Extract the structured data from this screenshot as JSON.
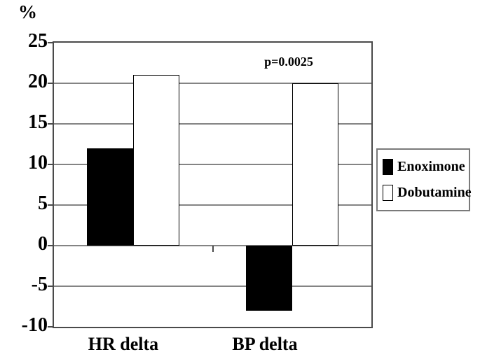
{
  "chart_data": {
    "type": "bar",
    "title": "",
    "ylabel": "%",
    "xlabel": "",
    "categories": [
      "HR delta",
      "BP delta"
    ],
    "series": [
      {
        "name": "Enoximone",
        "color": "#000000",
        "values": [
          12,
          -8
        ]
      },
      {
        "name": "Dobutamine",
        "color": "#ffffff",
        "values": [
          21,
          20
        ]
      }
    ],
    "annotation": "p=0.0025",
    "yticks": [
      25,
      20,
      15,
      10,
      5,
      0,
      -5,
      -10
    ],
    "ylim": [
      -10,
      25
    ],
    "grid": "horizontal",
    "legend_position": "right",
    "colors": {
      "gridline": "#848484",
      "frame": "#4a4a4a",
      "bar_border": "#000000",
      "text": "#000000",
      "background": "#ffffff"
    }
  }
}
